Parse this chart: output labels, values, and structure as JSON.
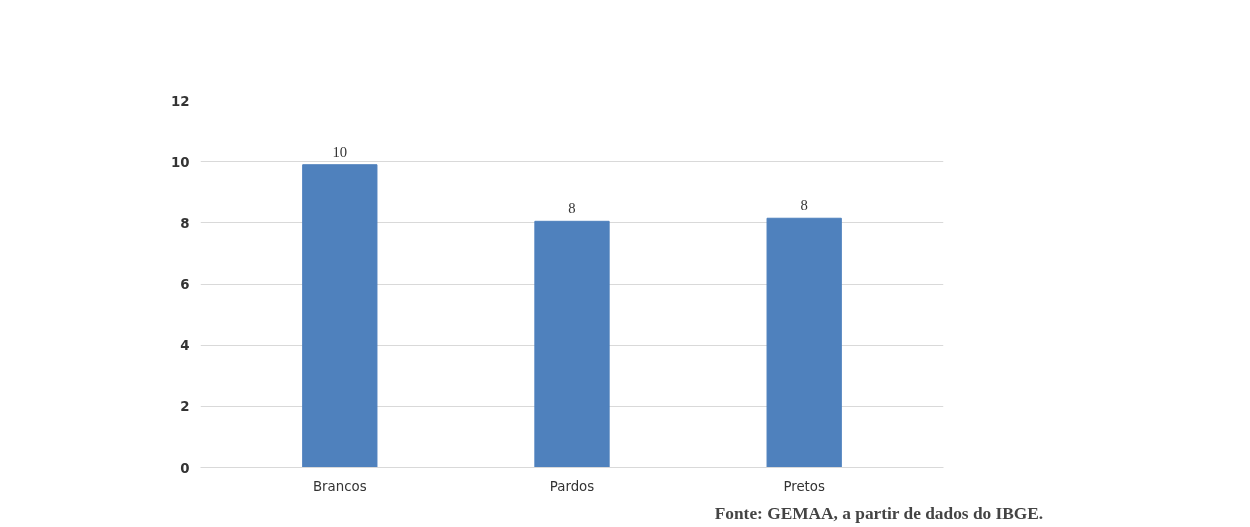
{
  "chart_data": {
    "type": "bar",
    "categories": [
      "Brancos",
      "Pardos",
      "Pretos"
    ],
    "values": [
      9.9,
      8.05,
      8.15
    ],
    "value_labels": [
      "10",
      "8",
      "8"
    ],
    "color": "#4f81bd",
    "ylim": [
      0,
      12
    ],
    "yticks": [
      0,
      2,
      4,
      6,
      8,
      10,
      12
    ],
    "grid": "y",
    "annotations": [
      "Fonte: GEMAA, a partir de dados do IBGE."
    ]
  }
}
